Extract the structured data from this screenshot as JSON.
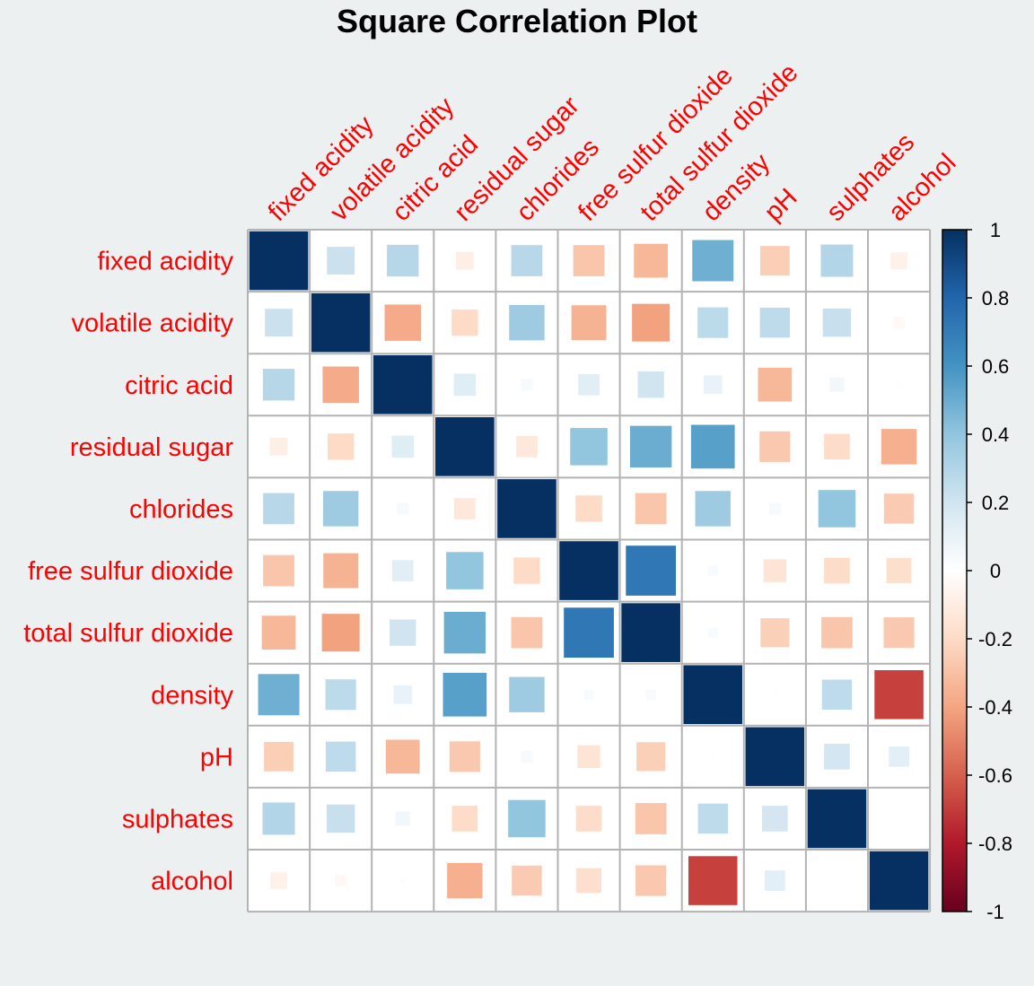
{
  "chart_data": {
    "type": "heatmap",
    "title": "Square Correlation Plot",
    "method": "square",
    "variables": [
      "fixed acidity",
      "volatile acidity",
      "citric acid",
      "residual sugar",
      "chlorides",
      "free sulfur dioxide",
      "total sulfur dioxide",
      "density",
      "pH",
      "sulphates",
      "alcohol"
    ],
    "matrix": [
      [
        1.0,
        0.22,
        0.29,
        -0.09,
        0.28,
        -0.28,
        -0.33,
        0.49,
        -0.25,
        0.3,
        -0.08
      ],
      [
        0.22,
        1.0,
        -0.38,
        -0.2,
        0.36,
        -0.35,
        -0.41,
        0.27,
        0.26,
        0.23,
        -0.04
      ],
      [
        0.29,
        -0.38,
        1.0,
        0.14,
        0.04,
        0.13,
        0.2,
        0.1,
        -0.33,
        0.06,
        -0.01
      ],
      [
        -0.09,
        -0.2,
        0.14,
        1.0,
        -0.13,
        0.4,
        0.5,
        0.55,
        -0.27,
        -0.19,
        -0.36
      ],
      [
        0.28,
        0.36,
        0.04,
        -0.13,
        1.0,
        -0.2,
        -0.28,
        0.36,
        0.04,
        0.4,
        -0.26
      ],
      [
        -0.28,
        -0.35,
        0.13,
        0.4,
        -0.2,
        1.0,
        0.72,
        0.03,
        -0.15,
        -0.19,
        -0.18
      ],
      [
        -0.33,
        -0.41,
        0.2,
        0.5,
        -0.28,
        0.72,
        1.0,
        0.03,
        -0.24,
        -0.28,
        -0.27
      ],
      [
        0.49,
        0.27,
        0.1,
        0.55,
        0.36,
        0.03,
        0.03,
        1.0,
        0.01,
        0.26,
        -0.69
      ],
      [
        -0.25,
        0.26,
        -0.33,
        -0.27,
        0.04,
        -0.15,
        -0.24,
        0.01,
        1.0,
        0.19,
        0.12
      ],
      [
        0.3,
        0.23,
        0.06,
        -0.19,
        0.4,
        -0.19,
        -0.28,
        0.26,
        0.19,
        1.0,
        0.0
      ],
      [
        -0.08,
        -0.04,
        -0.01,
        -0.36,
        -0.26,
        -0.18,
        -0.27,
        -0.69,
        0.12,
        0.0,
        1.0
      ]
    ],
    "colorbar": {
      "min": -1,
      "max": 1,
      "ticks": [
        "1",
        "0.8",
        "0.6",
        "0.4",
        "0.2",
        "0",
        "-0.2",
        "-0.4",
        "-0.6",
        "-0.8",
        "-1"
      ],
      "colors": [
        "#67001f",
        "#b2182b",
        "#d6604d",
        "#f4a582",
        "#fddbc7",
        "#ffffff",
        "#d1e5f0",
        "#92c5de",
        "#4393c3",
        "#2166ac",
        "#053061"
      ]
    },
    "label_color": "#ff0000",
    "grid": true
  }
}
